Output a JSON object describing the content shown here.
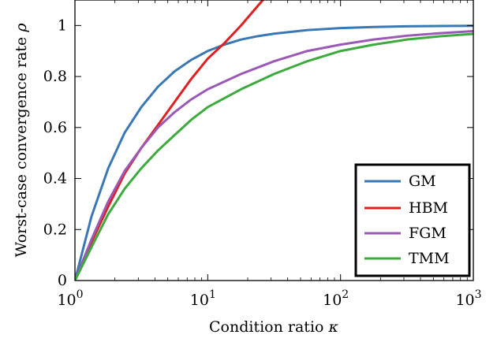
{
  "chart_data": {
    "type": "line",
    "title": "",
    "xlabel": "Condition ratio",
    "xlabel_symbol": "κ",
    "ylabel": "Worst-case convergence rate",
    "ylabel_symbol": "ρ",
    "xscale": "log",
    "xlim": [
      1,
      1000
    ],
    "ylim": [
      0,
      1.1
    ],
    "x_ticks": [
      {
        "value": 1,
        "base": "10",
        "exp": "0"
      },
      {
        "value": 10,
        "base": "10",
        "exp": "1"
      },
      {
        "value": 100,
        "base": "10",
        "exp": "2"
      },
      {
        "value": 1000,
        "base": "10",
        "exp": "3"
      }
    ],
    "y_ticks": [
      {
        "value": 0,
        "label": "0"
      },
      {
        "value": 0.2,
        "label": "0.2"
      },
      {
        "value": 0.4,
        "label": "0.4"
      },
      {
        "value": 0.6,
        "label": "0.6"
      },
      {
        "value": 0.8,
        "label": "0.8"
      },
      {
        "value": 1,
        "label": "1"
      }
    ],
    "grid": false,
    "legend_position": "bottom-right",
    "series": [
      {
        "name": "GM",
        "color": "#3a77b5",
        "points": [
          [
            1,
            0
          ],
          [
            1.33,
            0.25
          ],
          [
            1.78,
            0.44
          ],
          [
            2.37,
            0.58
          ],
          [
            3.16,
            0.68
          ],
          [
            4.22,
            0.76
          ],
          [
            5.62,
            0.82
          ],
          [
            7.5,
            0.865
          ],
          [
            10,
            0.9
          ],
          [
            13.3,
            0.925
          ],
          [
            17.8,
            0.945
          ],
          [
            23.7,
            0.958
          ],
          [
            31.6,
            0.968
          ],
          [
            56.2,
            0.982
          ],
          [
            100,
            0.99
          ],
          [
            178,
            0.994
          ],
          [
            316,
            0.997
          ],
          [
            562,
            0.998
          ],
          [
            1000,
            0.999
          ]
        ]
      },
      {
        "name": "HBM",
        "color": "#e02020",
        "points": [
          [
            1,
            0
          ],
          [
            1.33,
            0.15
          ],
          [
            1.78,
            0.29
          ],
          [
            2.37,
            0.42
          ],
          [
            3.16,
            0.52
          ],
          [
            4.22,
            0.61
          ],
          [
            5.62,
            0.7
          ],
          [
            7.5,
            0.79
          ],
          [
            10,
            0.87
          ],
          [
            13.3,
            0.93
          ],
          [
            17.8,
            1.0
          ],
          [
            26,
            1.1
          ]
        ]
      },
      {
        "name": "FGM",
        "color": "#9b59b6",
        "points": [
          [
            1,
            0
          ],
          [
            1.33,
            0.16
          ],
          [
            1.78,
            0.31
          ],
          [
            2.37,
            0.43
          ],
          [
            3.16,
            0.52
          ],
          [
            4.22,
            0.6
          ],
          [
            5.62,
            0.66
          ],
          [
            7.5,
            0.71
          ],
          [
            10,
            0.75
          ],
          [
            17.8,
            0.81
          ],
          [
            31.6,
            0.86
          ],
          [
            56.2,
            0.9
          ],
          [
            100,
            0.925
          ],
          [
            178,
            0.945
          ],
          [
            316,
            0.96
          ],
          [
            562,
            0.97
          ],
          [
            1000,
            0.978
          ]
        ]
      },
      {
        "name": "TMM",
        "color": "#3daa3d",
        "points": [
          [
            1,
            0
          ],
          [
            1.33,
            0.13
          ],
          [
            1.78,
            0.26
          ],
          [
            2.37,
            0.36
          ],
          [
            3.16,
            0.44
          ],
          [
            4.22,
            0.51
          ],
          [
            5.62,
            0.57
          ],
          [
            7.5,
            0.63
          ],
          [
            10,
            0.68
          ],
          [
            17.8,
            0.75
          ],
          [
            31.6,
            0.81
          ],
          [
            56.2,
            0.86
          ],
          [
            100,
            0.9
          ],
          [
            178,
            0.925
          ],
          [
            316,
            0.945
          ],
          [
            562,
            0.958
          ],
          [
            1000,
            0.967
          ]
        ]
      }
    ]
  }
}
